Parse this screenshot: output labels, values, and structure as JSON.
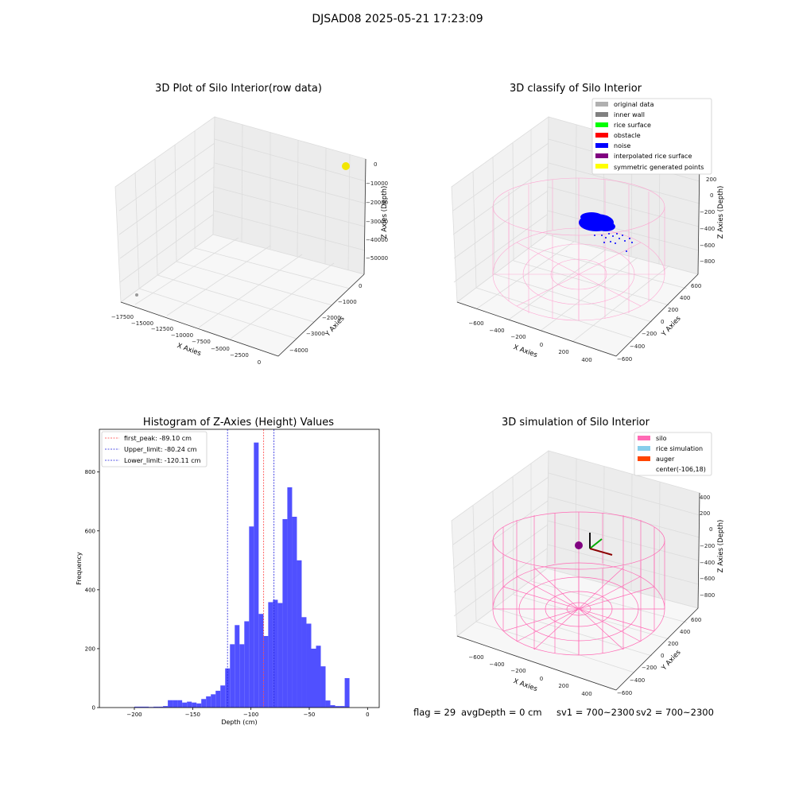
{
  "figure_title": "DJSAD08 2025-05-21 17:23:09",
  "footer": {
    "flag": "flag = 29",
    "avg_depth": "avgDepth = 0 cm",
    "sv1": "sv1 = 700~2300",
    "sv2": "sv2 = 700~2300"
  },
  "colors": {
    "hist_bar": "#5050ff",
    "first_peak": "#ff4040",
    "limits": "#2020dd",
    "silo_wire": "#ff77bb",
    "noise": "#0000ff"
  },
  "chart_data": [
    {
      "type": "scatter3d",
      "title": "3D Plot of Silo Interior(row data)",
      "xlabel": "X Axies",
      "ylabel": "Y Axies",
      "zlabel": "Z Axies (Depth)",
      "x_ticks": [
        "−17500",
        "−15000",
        "−12500",
        "−10000",
        "−7500",
        "−5000",
        "−2500",
        "0"
      ],
      "y_ticks": [
        "0",
        "−1000",
        "−2000",
        "−3000",
        "−4000"
      ],
      "z_ticks": [
        "0",
        "−10000",
        "−20000",
        "−30000",
        "−40000",
        "−50000"
      ],
      "points": [
        {
          "label": "rice cluster",
          "x": -100,
          "y": 0,
          "z": -100,
          "color": "#f2e600"
        },
        {
          "label": "outlier",
          "x": -17800,
          "y": -4300,
          "z": -58000,
          "color": "#999999"
        }
      ]
    },
    {
      "type": "scatter3d",
      "title": "3D classify of Silo Interior",
      "xlabel": "X Axies",
      "ylabel": "Y Axies",
      "zlabel": "Z Axies (Depth)",
      "x_ticks": [
        "−600",
        "−400",
        "−200",
        "0",
        "200",
        "400"
      ],
      "y_ticks": [
        "600",
        "400",
        "200",
        "0",
        "−200",
        "−400",
        "−600"
      ],
      "z_ticks": [
        "200",
        "0",
        "−200",
        "−400",
        "−600",
        "−800"
      ],
      "legend_position": "top-right",
      "legend": [
        {
          "label": "original data",
          "color": "#b0b0b0"
        },
        {
          "label": "inner wall",
          "color": "#808080"
        },
        {
          "label": "rice surface",
          "color": "#00ff00"
        },
        {
          "label": "obstacle",
          "color": "#ff0000"
        },
        {
          "label": "noise",
          "color": "#0000ff"
        },
        {
          "label": "interpolated rice surface",
          "color": "#800080"
        },
        {
          "label": "symmetric generated points",
          "color": "#ffff00"
        }
      ]
    },
    {
      "type": "bar",
      "title": "Histogram of Z-Axies (Height) Values",
      "xlabel": "Depth (cm)",
      "ylabel": "Frequency",
      "xlim": [
        -230,
        10
      ],
      "ylim": [
        0,
        945
      ],
      "x_ticks": [
        -200,
        -150,
        -100,
        -50,
        0
      ],
      "y_ticks": [
        0,
        200,
        400,
        600,
        800
      ],
      "bin_width": 4.1,
      "bins": [
        {
          "x": -200,
          "y": 3
        },
        {
          "x": -195.9,
          "y": 3
        },
        {
          "x": -191.8,
          "y": 3
        },
        {
          "x": -187.7,
          "y": 2
        },
        {
          "x": -183.6,
          "y": 3
        },
        {
          "x": -179.5,
          "y": 3
        },
        {
          "x": -175.4,
          "y": 5
        },
        {
          "x": -171.3,
          "y": 25
        },
        {
          "x": -167.2,
          "y": 25
        },
        {
          "x": -163.1,
          "y": 25
        },
        {
          "x": -159,
          "y": 17
        },
        {
          "x": -154.9,
          "y": 20
        },
        {
          "x": -150.8,
          "y": 17
        },
        {
          "x": -146.7,
          "y": 14
        },
        {
          "x": -142.6,
          "y": 29
        },
        {
          "x": -138.5,
          "y": 38
        },
        {
          "x": -134.4,
          "y": 45
        },
        {
          "x": -130.3,
          "y": 57
        },
        {
          "x": -126.2,
          "y": 75
        },
        {
          "x": -122.1,
          "y": 133
        },
        {
          "x": -118,
          "y": 215
        },
        {
          "x": -113.9,
          "y": 280
        },
        {
          "x": -109.8,
          "y": 215
        },
        {
          "x": -105.7,
          "y": 293
        },
        {
          "x": -101.6,
          "y": 615
        },
        {
          "x": -97.5,
          "y": 900
        },
        {
          "x": -93.4,
          "y": 318
        },
        {
          "x": -89.3,
          "y": 243
        },
        {
          "x": -85.2,
          "y": 358
        },
        {
          "x": -81.1,
          "y": 366
        },
        {
          "x": -77,
          "y": 355
        },
        {
          "x": -72.9,
          "y": 640
        },
        {
          "x": -68.8,
          "y": 748
        },
        {
          "x": -64.7,
          "y": 648
        },
        {
          "x": -60.6,
          "y": 500
        },
        {
          "x": -56.5,
          "y": 307
        },
        {
          "x": -52.4,
          "y": 285
        },
        {
          "x": -48.3,
          "y": 200
        },
        {
          "x": -44.2,
          "y": 210
        },
        {
          "x": -40.1,
          "y": 140
        },
        {
          "x": -36,
          "y": 24
        },
        {
          "x": -31.9,
          "y": 8
        },
        {
          "x": -27.8,
          "y": 5
        },
        {
          "x": -23.7,
          "y": 5
        },
        {
          "x": -19.6,
          "y": 100
        }
      ],
      "vlines": [
        {
          "label": "first_peak: -89.10 cm",
          "x": -89.1,
          "color": "#ff4040"
        },
        {
          "label": "Upper_limit: -80.24 cm",
          "x": -80.24,
          "color": "#2020dd"
        },
        {
          "label": "Lower_limit: -120.11 cm",
          "x": -120.11,
          "color": "#2020dd"
        }
      ],
      "legend_position": "top-left"
    },
    {
      "type": "surface3d",
      "title": "3D simulation of Silo Interior",
      "xlabel": "X Axies",
      "ylabel": "Y Axies",
      "zlabel": "Z Axies (Depth)",
      "x_ticks": [
        "−600",
        "−400",
        "−200",
        "0",
        "200",
        "400"
      ],
      "y_ticks": [
        "600",
        "400",
        "200",
        "0",
        "−200",
        "−400",
        "−600"
      ],
      "z_ticks": [
        "400",
        "200",
        "0",
        "−200",
        "−400",
        "−600",
        "−800"
      ],
      "legend_position": "top-right",
      "legend": [
        {
          "label": "silo",
          "color": "#ff69b4"
        },
        {
          "label": "rice simulation",
          "color": "#87ceeb"
        },
        {
          "label": "auger",
          "color": "#ff4500"
        },
        {
          "label": "center(-106,18)",
          "color": ""
        }
      ]
    }
  ]
}
